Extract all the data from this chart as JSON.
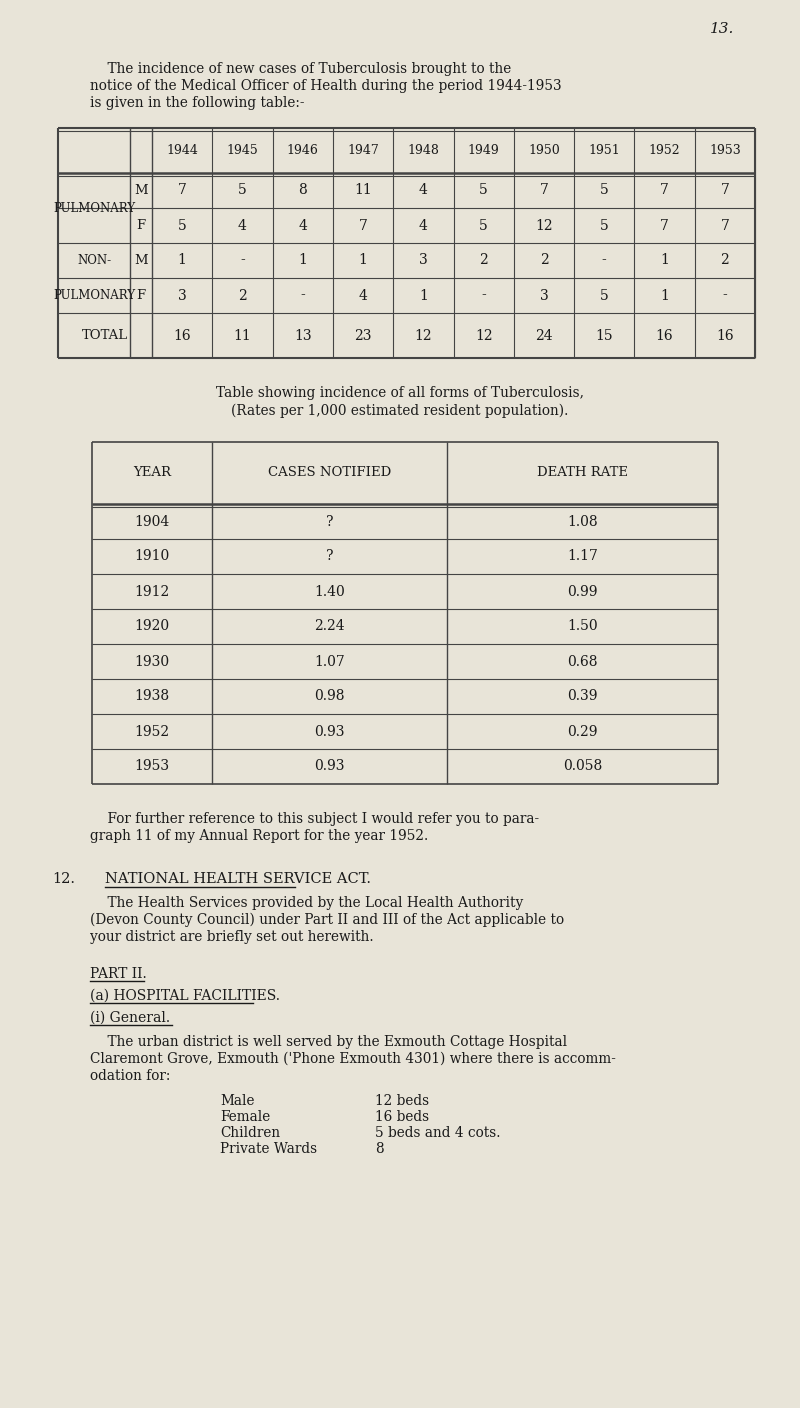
{
  "bg_color": "#e8e4d8",
  "text_color": "#1a1a1a",
  "page_number": "13.",
  "intro_text": [
    "    The incidence of new cases of Tuberculosis brought to the",
    "notice of the Medical Officer of Health during the period 1944-1953",
    "is given in the following table:-"
  ],
  "table1": {
    "years": [
      "1944",
      "1945",
      "1946",
      "1947",
      "1948",
      "1949",
      "1950",
      "1951",
      "1952",
      "1953"
    ],
    "rows": [
      {
        "label": "PULMONARY",
        "sub": "M",
        "values": [
          "7",
          "5",
          "8",
          "11",
          "4",
          "5",
          "7",
          "5",
          "7",
          "7"
        ]
      },
      {
        "label": "",
        "sub": "F",
        "values": [
          "5",
          "4",
          "4",
          "7",
          "4",
          "5",
          "12",
          "5",
          "7",
          "7"
        ]
      },
      {
        "label": "NON-",
        "sub": "M",
        "values": [
          "1",
          "-",
          "1",
          "1",
          "3",
          "2",
          "2",
          "-",
          "1",
          "2"
        ]
      },
      {
        "label": "PULMONARY",
        "sub": "F",
        "values": [
          "3",
          "2",
          "-",
          "4",
          "1",
          "-",
          "3",
          "5",
          "1",
          "-"
        ]
      },
      {
        "label": "TOTAL",
        "sub": "",
        "values": [
          "16",
          "11",
          "13",
          "23",
          "12",
          "12",
          "24",
          "15",
          "16",
          "16"
        ]
      }
    ]
  },
  "table2_caption": [
    "Table showing incidence of all forms of Tuberculosis,",
    "(Rates per 1,000 estimated resident population)."
  ],
  "table2": {
    "headers": [
      "YEAR",
      "CASES NOTIFIED",
      "DEATH RATE"
    ],
    "rows": [
      [
        "1904",
        "?",
        "1.08"
      ],
      [
        "1910",
        "?",
        "1.17"
      ],
      [
        "1912",
        "1.40",
        "0.99"
      ],
      [
        "1920",
        "2.24",
        "1.50"
      ],
      [
        "1930",
        "1.07",
        "0.68"
      ],
      [
        "1938",
        "0.98",
        "0.39"
      ],
      [
        "1952",
        "0.93",
        "0.29"
      ],
      [
        "1953",
        "0.93",
        "0.058"
      ]
    ]
  },
  "para_text": [
    "    For further reference to this subject I would refer you to para-",
    "graph 11 of my Annual Report for the year 1952."
  ],
  "section12_heading": "12.",
  "section12_title": "NATIONAL HEALTH SERVICE ACT.",
  "section12_body": [
    "    The Health Services provided by the Local Health Authority",
    "(Devon County Council) under Part II and III of the Act applicable to",
    "your district are briefly set out herewith."
  ],
  "part2_heading": "PART II.",
  "part2a_heading": "(a) HOSPITAL FACILITIES.",
  "part2a_i_heading": "(i) General.",
  "general_body": [
    "    The urban district is well served by the Exmouth Cottage Hospital",
    "Claremont Grove, Exmouth ('Phone Exmouth 4301) where there is accomm-",
    "odation for:"
  ],
  "beds_list": [
    [
      "Male",
      "12 beds"
    ],
    [
      "Female",
      "16 beds"
    ],
    [
      "Children",
      "5 beds and 4 cots."
    ],
    [
      "Private Wards",
      "8"
    ]
  ]
}
